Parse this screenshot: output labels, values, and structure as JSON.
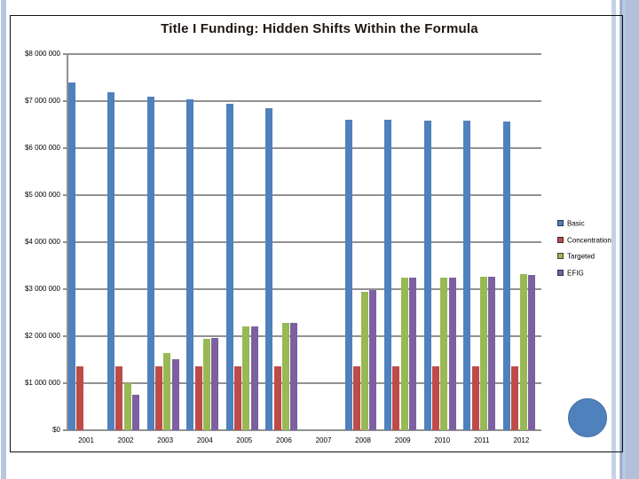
{
  "slide": {
    "title": "Title I Funding: Hidden Shifts Within the Formula"
  },
  "colors": {
    "basic": "#4F81BD",
    "concentration": "#BE4B48",
    "targeted": "#98B954",
    "efig": "#7D60A0",
    "gridline": "#919191",
    "title_text": "#201513",
    "accent_circle": "#4F81BD",
    "accent_circle_edge": "#3F6DA3",
    "stripe_outer_left": "#B7C6DD",
    "stripe_right_a": "#C6D2E4",
    "stripe_right_b": "#BACQE0",
    "stripe_right_b_fix": "#BAC9E0",
    "stripe_right_dark_line": "#8FA9CC",
    "stripe_right_block": "#B2C1D9"
  },
  "chart_data": {
    "type": "bar",
    "title": "Title I Funding: Hidden Shifts Within the Formula",
    "categories": [
      "2001",
      "2002",
      "2003",
      "2004",
      "2005",
      "2006",
      "2007",
      "2008",
      "2009",
      "2010",
      "2011",
      "2012"
    ],
    "series": [
      {
        "name": "Basic",
        "color_key": "basic",
        "values": [
          7400000,
          7190000,
          7100000,
          7040000,
          6950000,
          6840000,
          0,
          6600000,
          6600000,
          6590000,
          6580000,
          6570000
        ]
      },
      {
        "name": "Concentration",
        "color_key": "concentration",
        "values": [
          1350000,
          1350000,
          1350000,
          1350000,
          1350000,
          1350000,
          0,
          1350000,
          1350000,
          1350000,
          1350000,
          1350000
        ]
      },
      {
        "name": "Targeted",
        "color_key": "targeted",
        "values": [
          0,
          1000000,
          1650000,
          1950000,
          2200000,
          2290000,
          0,
          2950000,
          3250000,
          3250000,
          3260000,
          3320000
        ]
      },
      {
        "name": "EFIG",
        "color_key": "efig",
        "values": [
          0,
          760000,
          1510000,
          1960000,
          2210000,
          2280000,
          0,
          2990000,
          3250000,
          3250000,
          3260000,
          3300000
        ]
      }
    ],
    "xlabel": "",
    "ylabel": "",
    "ylim": [
      0,
      8000000
    ],
    "ytick_step": 1000000,
    "ytick_labels": [
      "$0",
      "$1 000 000",
      "$2 000 000",
      "$3 000 000",
      "$4 000 000",
      "$5 000 000",
      "$6 000 000",
      "$7 000 000",
      "$8 000 000"
    ],
    "grid": true,
    "legend_position": "right",
    "legend": [
      "Basic",
      "Concentration",
      "Targeted",
      "EFIG"
    ]
  }
}
